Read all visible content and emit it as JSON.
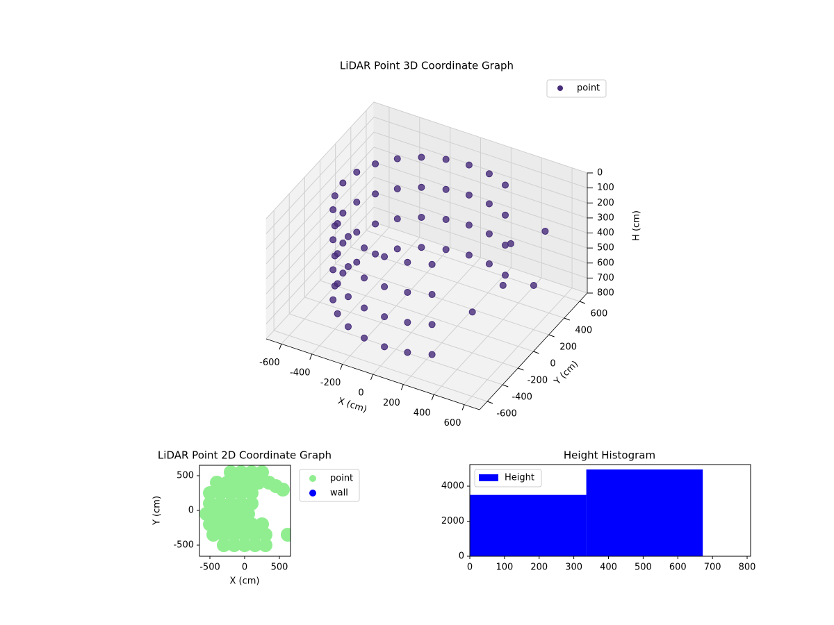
{
  "chart_data": [
    {
      "type": "scatter3d",
      "title": "LiDAR Point 3D Coordinate Graph",
      "xlabel": "X (cm)",
      "ylabel": "Y (cm)",
      "zlabel": "H (cm)",
      "xlim": [
        -700,
        700
      ],
      "ylim": [
        -700,
        700
      ],
      "zlim": [
        800,
        0
      ],
      "xticks": [
        -600,
        -400,
        -200,
        0,
        200,
        400,
        600
      ],
      "yticks": [
        -600,
        -400,
        -200,
        0,
        200,
        400,
        600
      ],
      "zticks": [
        0,
        100,
        200,
        300,
        400,
        500,
        600,
        700,
        800
      ],
      "grid": true,
      "legend": "upper right",
      "series": [
        {
          "name": "point",
          "color": "#472c7a",
          "x": [
            275,
            275,
            275,
            275,
            142,
            142,
            142,
            142,
            0,
            0,
            0,
            0,
            -142,
            -142,
            -142,
            -142,
            -275,
            -275,
            -275,
            -275,
            -389,
            -389,
            -389,
            -389,
            -476,
            -476,
            -476,
            -476,
            -531,
            -531,
            -531,
            -531,
            -550,
            -550,
            -550,
            -550,
            -531,
            -531,
            -531,
            -531,
            -476,
            -476,
            -476,
            -476,
            -389,
            -389,
            -389,
            -389,
            -275,
            -275,
            -275,
            -275,
            -142,
            -142,
            -142,
            -142,
            0,
            0,
            0,
            0,
            142,
            142,
            142,
            142,
            275,
            275,
            275,
            275,
            400,
            450,
            500,
            350,
            550
          ],
          "y": [
            476,
            476,
            476,
            476,
            531,
            531,
            531,
            531,
            550,
            550,
            550,
            550,
            531,
            531,
            531,
            531,
            476,
            476,
            476,
            476,
            389,
            389,
            389,
            389,
            275,
            275,
            275,
            275,
            142,
            142,
            142,
            142,
            0,
            0,
            0,
            0,
            -142,
            -142,
            -142,
            -142,
            -275,
            -275,
            -275,
            -275,
            -389,
            -389,
            -389,
            -389,
            -476,
            -476,
            -476,
            -476,
            -531,
            -531,
            -531,
            -531,
            -550,
            -550,
            -550,
            -550,
            -531,
            -531,
            -531,
            -531,
            -476,
            -476,
            -476,
            -476,
            300,
            100,
            400,
            -100,
            450
          ],
          "z": [
            100,
            300,
            500,
            700,
            100,
            300,
            500,
            700,
            100,
            300,
            500,
            700,
            100,
            300,
            500,
            700,
            100,
            300,
            500,
            700,
            100,
            300,
            500,
            700,
            100,
            300,
            500,
            700,
            100,
            300,
            500,
            700,
            100,
            300,
            500,
            700,
            100,
            300,
            500,
            700,
            100,
            300,
            500,
            700,
            100,
            300,
            500,
            700,
            100,
            300,
            500,
            700,
            100,
            300,
            500,
            700,
            100,
            300,
            500,
            700,
            100,
            300,
            500,
            700,
            100,
            300,
            500,
            700,
            350,
            500,
            650,
            600,
            300
          ]
        }
      ]
    },
    {
      "type": "scatter",
      "title": "LiDAR Point 2D Coordinate Graph",
      "xlabel": "X (cm)",
      "ylabel": "Y (cm)",
      "xlim": [
        -650,
        660
      ],
      "ylim": [
        -660,
        650
      ],
      "xticks": [
        -500,
        0,
        500
      ],
      "yticks": [
        -500,
        0,
        500
      ],
      "legend": "outside upper right",
      "series": [
        {
          "name": "point",
          "color": "#90ee90",
          "x": [
            -200,
            -50,
            100,
            250,
            -400,
            -250,
            -100,
            50,
            200,
            350,
            -500,
            -350,
            -200,
            -50,
            100,
            -500,
            -350,
            -200,
            -50,
            100,
            -550,
            -400,
            -250,
            -100,
            50,
            -500,
            -350,
            -200,
            -50,
            100,
            250,
            -450,
            -300,
            -150,
            0,
            150,
            300,
            -300,
            -150,
            0,
            150,
            300,
            450,
            550,
            620
          ],
          "y": [
            550,
            550,
            550,
            550,
            400,
            400,
            400,
            400,
            400,
            400,
            250,
            250,
            250,
            250,
            250,
            100,
            100,
            100,
            100,
            100,
            -50,
            -50,
            -50,
            -50,
            -50,
            -200,
            -200,
            -200,
            -200,
            -200,
            -200,
            -350,
            -350,
            -350,
            -350,
            -350,
            -350,
            -500,
            -500,
            -500,
            -500,
            -500,
            350,
            300,
            -350
          ]
        },
        {
          "name": "wall",
          "color": "#0000ff",
          "x": [],
          "y": []
        }
      ]
    },
    {
      "type": "histogram",
      "title": "Height Histogram",
      "label": "Height",
      "color": "#0000ff",
      "bins": [
        0,
        336,
        672
      ],
      "counts": [
        3500,
        4950
      ],
      "xlim": [
        0,
        810
      ],
      "ylim": [
        0,
        5230
      ],
      "xticks": [
        0,
        100,
        200,
        300,
        400,
        500,
        600,
        700,
        800
      ],
      "yticks": [
        0,
        2000,
        4000
      ],
      "legend": "upper left"
    }
  ]
}
